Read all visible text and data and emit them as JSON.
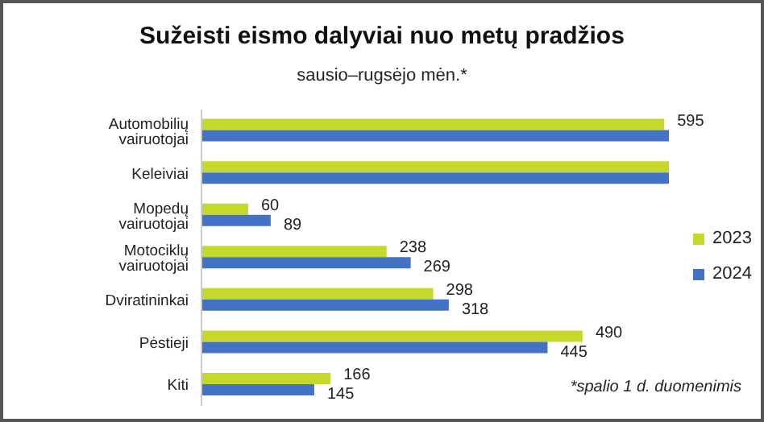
{
  "chart_data": {
    "type": "bar",
    "orientation": "horizontal",
    "title": "Sužeisti eismo dalyviai nuo metų pradžios",
    "subtitle": "sausio–rugsėjo mėn.*",
    "categories": [
      "Automobilių vairuotojai",
      "Keleiviai",
      "Mopedų vairuotojai",
      "Motociklų vairuotojai",
      "Dviratininkai",
      "Pėstieji",
      "Kiti"
    ],
    "series": [
      {
        "name": "2023",
        "color": "#c5d92d",
        "values": [
          595,
          601,
          60,
          238,
          298,
          490,
          166
        ],
        "value_labels": [
          "595",
          null,
          "60",
          "238",
          "298",
          "490",
          "166"
        ]
      },
      {
        "name": "2024",
        "color": "#4472c4",
        "values": [
          601,
          601,
          89,
          269,
          318,
          445,
          145
        ],
        "value_labels": [
          null,
          null,
          "89",
          "269",
          "318",
          "445",
          "145"
        ]
      }
    ],
    "xlim": [
      0,
      601
    ],
    "tick_labels": "y",
    "legend": "right",
    "annotations": [
      "*spalio 1 d. duomenimis"
    ]
  }
}
